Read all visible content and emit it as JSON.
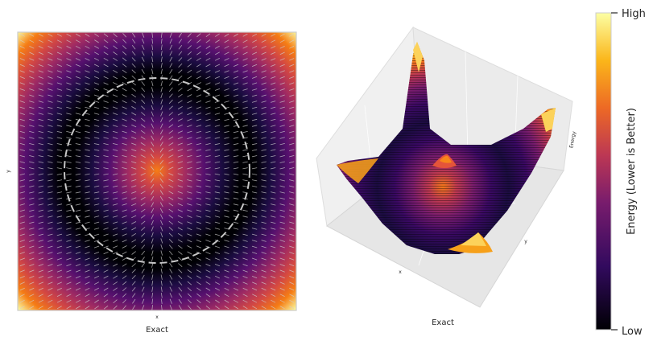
{
  "chart_data": [
    {
      "type": "heatmap",
      "panel": "2d-energy-map",
      "title": "",
      "xlabel": "x",
      "ylabel": "y",
      "caption": "Exact",
      "colormap": "inferno",
      "grid": false,
      "overlays": [
        "gradient-vector-field",
        "dashed-circle"
      ],
      "notes": "radially symmetric energy: bright (high) at centre, dark ring, bright (high) again in the corners"
    },
    {
      "type": "surface",
      "panel": "3d-energy-surface",
      "title": "",
      "xlabel": "x",
      "ylabel": "y",
      "zlabel": "Energy",
      "caption": "Exact",
      "colormap": "inferno",
      "grid": true,
      "notes": "bowl shaped surface with a central peak rising from a ring-shaped valley"
    }
  ],
  "colorbar": {
    "label": "Energy (Lower is Better)",
    "tick_top": "High",
    "tick_bottom": "Low",
    "colormap": "inferno",
    "placement": "right"
  }
}
